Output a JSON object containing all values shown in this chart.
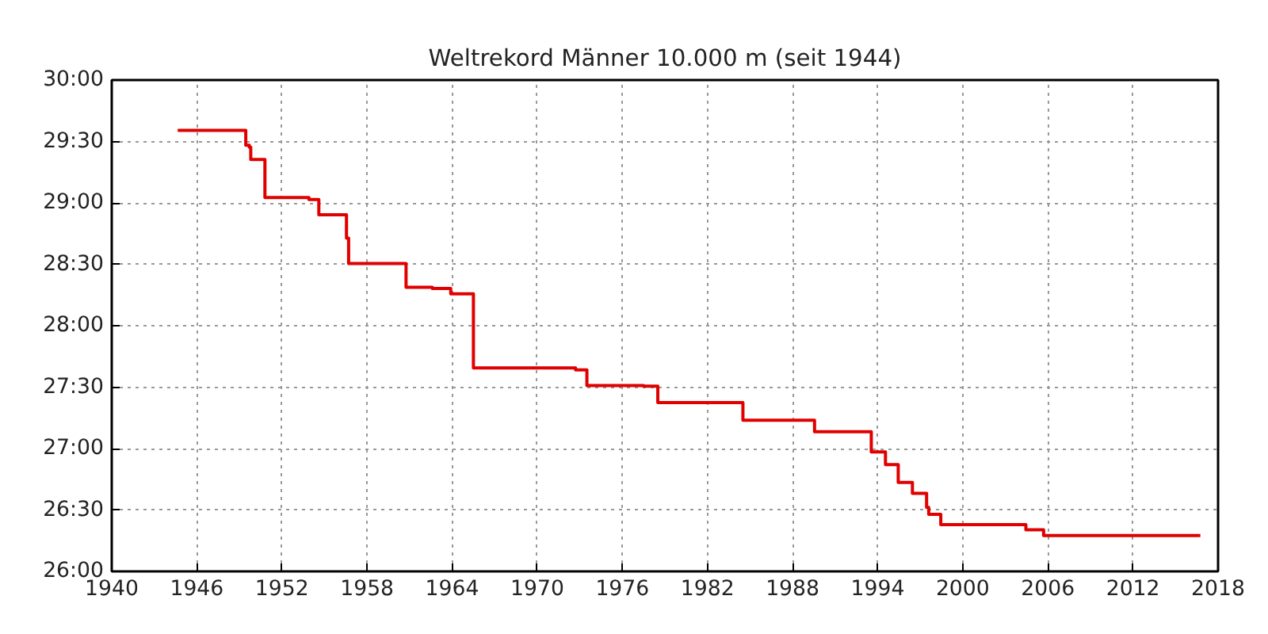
{
  "chart_data": {
    "type": "step",
    "title": "Weltrekord Männer 10.000 m (seit 1944)",
    "x": [
      1944.65,
      1949.45,
      1949.7,
      1949.8,
      1950.8,
      1953.9,
      1954.6,
      1956.55,
      1956.7,
      1960.75,
      1962.6,
      1963.9,
      1965.5,
      1972.7,
      1973.5,
      1977.5,
      1978.5,
      1984.5,
      1989.55,
      1993.55,
      1994.55,
      1995.45,
      1996.45,
      1997.45,
      1997.6,
      1998.45,
      2004.45,
      2005.7,
      2016.75
    ],
    "series": [
      {
        "color": "#e00000",
        "values": [
          1775.4,
          1768.2,
          1767.2,
          1761.2,
          1742.6,
          1741.6,
          1734.2,
          1722.8,
          1710.4,
          1698.8,
          1698.2,
          1695.6,
          1659.4,
          1658.4,
          1650.8,
          1650.5,
          1642.5,
          1633.8,
          1628.2,
          1618.4,
          1612.2,
          1603.5,
          1598.1,
          1591.3,
          1587.9,
          1582.8,
          1580.3,
          1577.5,
          1577.5
        ]
      }
    ],
    "xlim": [
      1940,
      2018
    ],
    "xticks": [
      1940,
      1946,
      1952,
      1958,
      1964,
      1970,
      1976,
      1982,
      1988,
      1994,
      2000,
      2006,
      2012,
      2018
    ],
    "ylim": [
      1560,
      1800
    ],
    "yticks": [
      {
        "value": 1560,
        "label": "26:00"
      },
      {
        "value": 1590,
        "label": "26:30"
      },
      {
        "value": 1620,
        "label": "27:00"
      },
      {
        "value": 1650,
        "label": "27:30"
      },
      {
        "value": 1680,
        "label": "28:00"
      },
      {
        "value": 1710,
        "label": "28:30"
      },
      {
        "value": 1740,
        "label": "29:00"
      },
      {
        "value": 1770,
        "label": "29:30"
      },
      {
        "value": 1800,
        "label": "30:00"
      }
    ],
    "grid": true,
    "line_style": "solid"
  }
}
